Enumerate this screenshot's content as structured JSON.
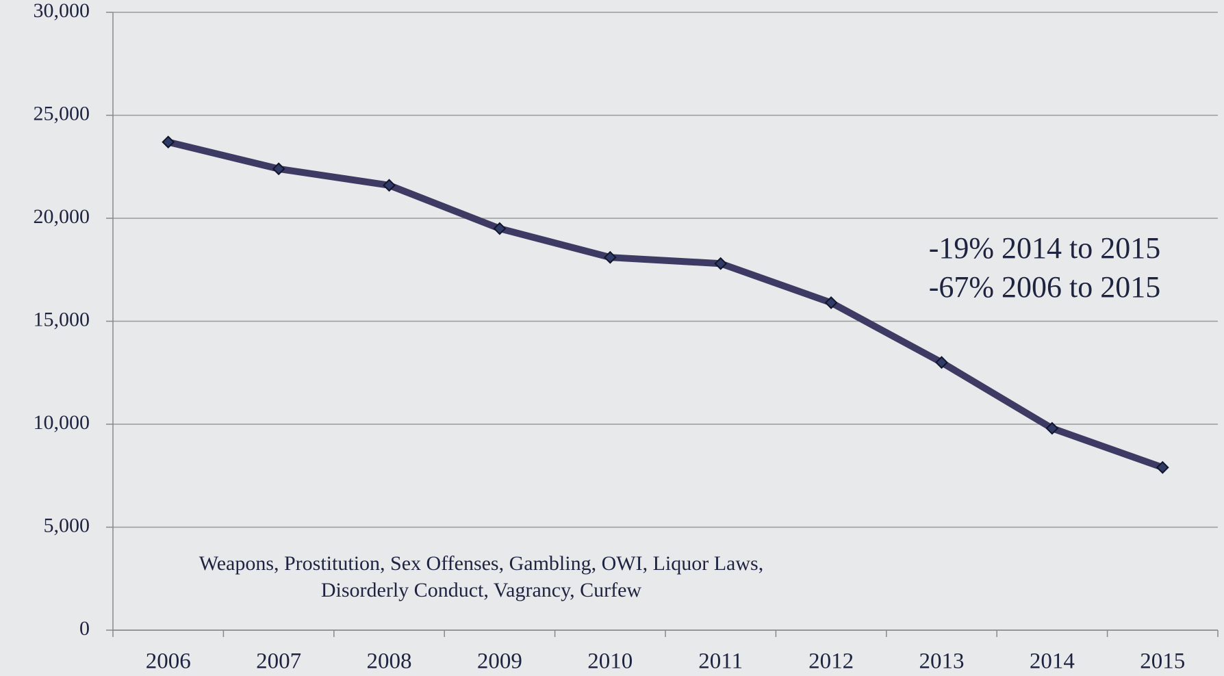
{
  "chart_data": {
    "type": "line",
    "categories": [
      "2006",
      "2007",
      "2008",
      "2009",
      "2010",
      "2011",
      "2012",
      "2013",
      "2014",
      "2015"
    ],
    "series": [
      {
        "color": "#3d3a63",
        "values": [
          23700,
          22400,
          21600,
          19500,
          18100,
          17800,
          15900,
          13000,
          9800,
          7900
        ]
      }
    ],
    "ylim": [
      0,
      30000
    ],
    "yticks": [
      0,
      {
        "value": 5000,
        "label": "5,000"
      },
      {
        "value": 10000,
        "label": "10,000"
      },
      {
        "value": 15000,
        "label": "15,000"
      },
      {
        "value": 20000,
        "label": "20,000"
      },
      {
        "value": 25000,
        "label": "25,000"
      },
      {
        "value": 30000,
        "label": "30,000"
      }
    ],
    "grid": true,
    "annotations": [
      "-19% 2014 to 2015",
      "-67% 2006 to 2015"
    ],
    "note": [
      "Weapons, Prostitution, Sex Offenses, Gambling, OWI, Liquor Laws,",
      "Disorderly Conduct, Vagrancy, Curfew"
    ]
  }
}
